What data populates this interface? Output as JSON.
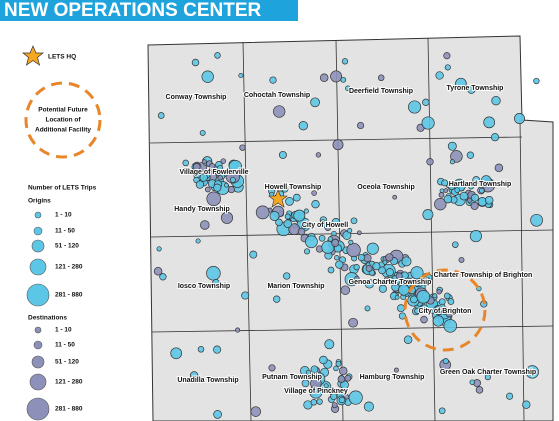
{
  "header": {
    "title": "NEW OPERATIONS CENTER"
  },
  "legend": {
    "hq": "LETS HQ",
    "facility": [
      "Potential Future",
      "Location of",
      "Additional Facility"
    ],
    "trips_heading": "Number of LETS Trips",
    "origins": {
      "heading": "Origins",
      "ranges": [
        "1 - 10",
        "11 - 50",
        "51 - 120",
        "121 - 280",
        "281 - 880"
      ]
    },
    "destinations": {
      "heading": "Destinations",
      "ranges": [
        "1 - 10",
        "11 - 50",
        "51 - 120",
        "121 - 280",
        "281 - 880"
      ]
    }
  },
  "map": {
    "labels": [
      "Conway Township",
      "Cohoctah Township",
      "Deerfield Township",
      "Tyrone Township",
      "Village of Fowlerville",
      "Handy Township",
      "Howell Township",
      "Oceola Township",
      "Hartland Township",
      "City of Howell",
      "Iosco Township",
      "Marion Township",
      "Genoa Charter Township",
      "Charter Township of Brighton",
      "City of Brighton",
      "Unadilla Township",
      "Putnam Township",
      "Village of Pinckney",
      "Hamburg Township",
      "Green Oak Charter Township"
    ]
  }
}
